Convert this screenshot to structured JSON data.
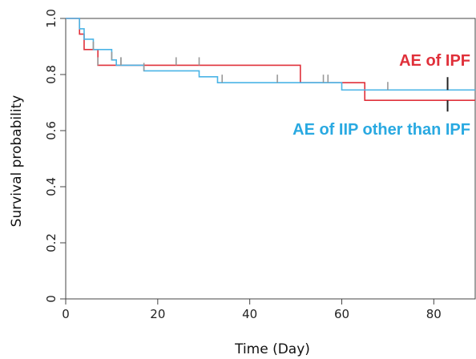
{
  "chart_data": {
    "type": "line",
    "subtype": "kaplan-meier step",
    "title": "",
    "xlabel": "Time (Day)",
    "ylabel": "Survival probability",
    "xlim": [
      0,
      89
    ],
    "ylim": [
      0,
      1.0
    ],
    "x_ticks": [
      0,
      20,
      40,
      60,
      80
    ],
    "y_ticks": [
      0,
      0.2,
      0.4,
      0.6,
      0.8,
      1.0
    ],
    "y_tick_labels": [
      "0",
      "0.2",
      "0.4",
      "0.6",
      "0.8",
      "1.0"
    ],
    "grid": false,
    "legend": "direct labels at right",
    "series": [
      {
        "name": "AE of IPF",
        "color": "#e0303a",
        "steps": [
          [
            0,
            1.0
          ],
          [
            3,
            0.944
          ],
          [
            4,
            0.889
          ],
          [
            7,
            0.833
          ],
          [
            51,
            0.771
          ],
          [
            65,
            0.708
          ],
          [
            89,
            0.708
          ]
        ],
        "censor_times": [
          7,
          12,
          24,
          29,
          83
        ],
        "censor_values": [
          0.833,
          0.833,
          0.833,
          0.833,
          0.708
        ]
      },
      {
        "name": "AE of IIP other than IPF",
        "color": "#4ab4e6",
        "steps": [
          [
            0,
            1.0
          ],
          [
            3,
            0.963
          ],
          [
            4,
            0.926
          ],
          [
            6,
            0.889
          ],
          [
            10,
            0.852
          ],
          [
            11,
            0.833
          ],
          [
            12,
            0.833
          ],
          [
            17,
            0.813
          ],
          [
            29,
            0.792
          ],
          [
            33,
            0.771
          ],
          [
            60,
            0.745
          ],
          [
            89,
            0.745
          ]
        ],
        "censor_times": [
          6,
          10,
          12,
          17,
          34,
          46,
          56,
          57,
          70,
          83
        ],
        "censor_values": [
          0.889,
          0.852,
          0.833,
          0.813,
          0.771,
          0.771,
          0.771,
          0.771,
          0.745,
          0.745
        ]
      }
    ],
    "series_label_colors": {
      "AE of IPF": "#e0303a",
      "AE of IIP other than IPF": "#29a9e1"
    }
  }
}
